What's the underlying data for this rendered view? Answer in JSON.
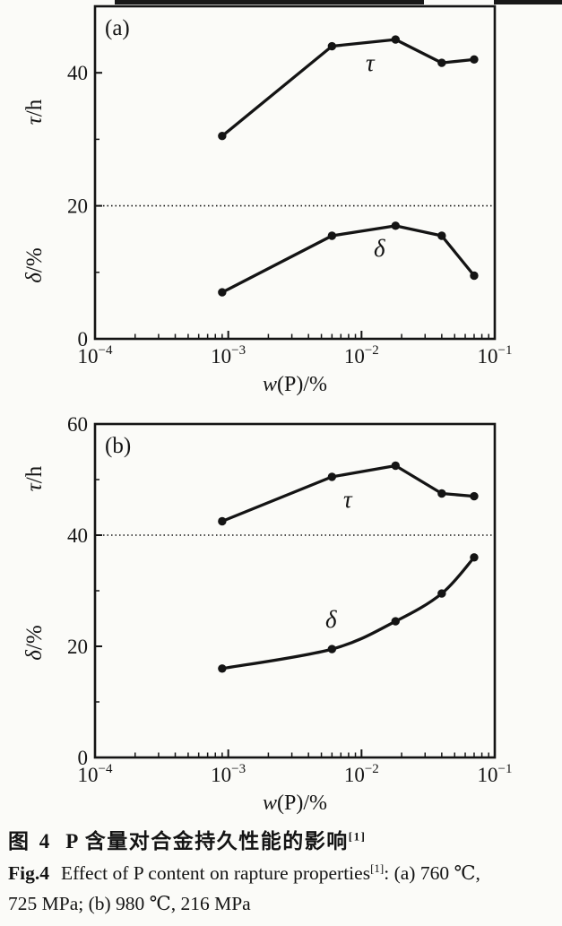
{
  "figure": {
    "caption_cn_label": "图 4",
    "caption_cn_text": "P 含量对合金持久性能的影响",
    "caption_cn_sup": "[1]",
    "caption_en_label": "Fig.4",
    "caption_en_text": "Effect of P content on rapture properties",
    "caption_en_sup": "[1]",
    "caption_en_tail": ": (a) 760 ℃,",
    "caption_en_line2": "725 MPa; (b) 980 ℃, 216 MPa"
  },
  "colors": {
    "ink": "#141414",
    "paper": "#fbfbf8"
  },
  "chart_data": [
    {
      "type": "line",
      "panel": "(a)",
      "conditions": "760 ℃, 725 MPa",
      "xscale": "log",
      "xlim": [
        0.0001,
        0.1
      ],
      "x_tick_labels": [
        "10⁻⁴",
        "10⁻³",
        "10⁻²",
        "10⁻¹"
      ],
      "xlabel": "w(P)/%",
      "x": [
        0.0009,
        0.006,
        0.018,
        0.04,
        0.07
      ],
      "ylim": [
        0,
        50
      ],
      "yticks": [
        0,
        20,
        40
      ],
      "ylabel_upper": "τ/h",
      "ylabel_lower": "δ/%",
      "reference_line_y": 20,
      "grid": false,
      "series": [
        {
          "name": "τ",
          "values": [
            30.5,
            44,
            45,
            41.5,
            42
          ],
          "smooth": false
        },
        {
          "name": "δ",
          "values": [
            7,
            15.5,
            17,
            15.5,
            9.5
          ],
          "smooth": false
        }
      ]
    },
    {
      "type": "line",
      "panel": "(b)",
      "conditions": "980 ℃, 216 MPa",
      "xscale": "log",
      "xlim": [
        0.0001,
        0.1
      ],
      "x_tick_labels": [
        "10⁻⁴",
        "10⁻³",
        "10⁻²",
        "10⁻¹"
      ],
      "xlabel": "w(P)/%",
      "x": [
        0.0009,
        0.006,
        0.018,
        0.04,
        0.07
      ],
      "ylim": [
        0,
        60
      ],
      "yticks": [
        0,
        20,
        40,
        60
      ],
      "ylabel_upper": "τ/h",
      "ylabel_lower": "δ/%",
      "reference_line_y": 40,
      "grid": false,
      "series": [
        {
          "name": "τ",
          "values": [
            42.5,
            50.5,
            52.5,
            47.5,
            47
          ],
          "smooth": false
        },
        {
          "name": "δ",
          "values": [
            16,
            19.5,
            24.5,
            29.5,
            36
          ],
          "smooth": true
        }
      ]
    }
  ]
}
